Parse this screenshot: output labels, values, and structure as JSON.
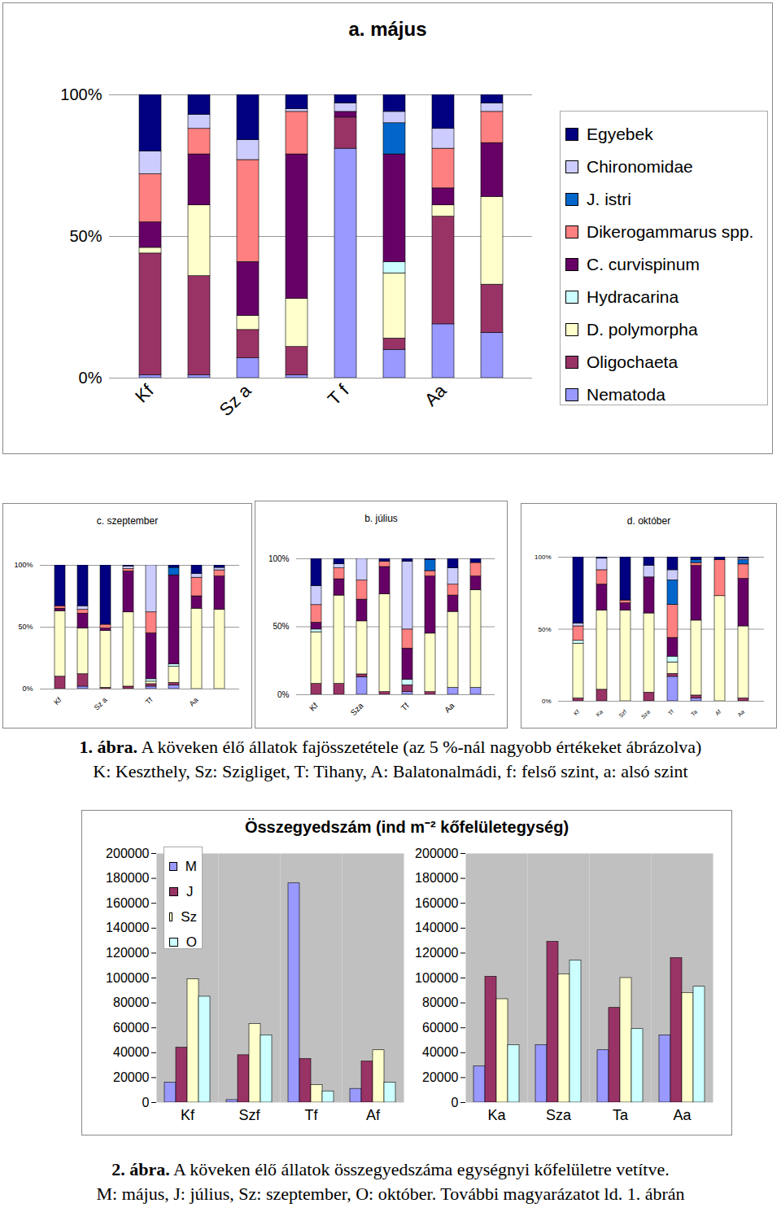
{
  "chart_data": [
    {
      "type": "bar",
      "stacked": true,
      "title": "a. május",
      "grid": true,
      "legend": "right",
      "categories": [
        "Kf",
        null,
        "Sz a",
        null,
        "T f",
        null,
        "Aa",
        null
      ],
      "ylim": [
        0,
        100
      ],
      "yticks": [
        {
          "value": 0,
          "label": "0%"
        },
        {
          "value": 50,
          "label": "50%"
        },
        {
          "value": 100,
          "label": "100%"
        }
      ],
      "series": [
        {
          "name": "Nematoda",
          "color": "#9999ff",
          "values": [
            1,
            1,
            7,
            1,
            81,
            10,
            19,
            16
          ]
        },
        {
          "name": "Oligochaeta",
          "color": "#993366",
          "values": [
            43,
            35,
            10,
            10,
            11,
            4,
            38,
            17
          ]
        },
        {
          "name": "D. polymorpha",
          "color": "#ffffcc",
          "values": [
            2,
            25,
            5,
            17,
            0,
            23,
            4,
            31
          ]
        },
        {
          "name": "Hydracarina",
          "color": "#ccffff",
          "values": [
            0,
            0,
            0,
            0,
            0,
            4,
            0,
            0
          ]
        },
        {
          "name": "C. curvispinum",
          "color": "#660066",
          "values": [
            9,
            18,
            19,
            51,
            2,
            38,
            6,
            19
          ]
        },
        {
          "name": "Dikerogammarus spp.",
          "color": "#ff8080",
          "values": [
            17,
            9,
            36,
            15,
            0,
            0,
            14,
            11
          ]
        },
        {
          "name": "J. istri",
          "color": "#0066cc",
          "values": [
            0,
            0,
            0,
            0,
            0,
            11,
            0,
            0
          ]
        },
        {
          "name": "Chironomidae",
          "color": "#ccccff",
          "values": [
            8,
            5,
            7,
            1,
            3,
            4,
            7,
            3
          ]
        },
        {
          "name": "Egyebek",
          "color": "#000080",
          "values": [
            20,
            7,
            16,
            5,
            3,
            6,
            12,
            3
          ]
        }
      ]
    },
    {
      "type": "bar",
      "stacked": true,
      "title": "c. szeptember",
      "grid": true,
      "categories": [
        "Kf",
        null,
        "Sz a",
        null,
        "Tf",
        null,
        "Aa",
        null
      ],
      "ylim": [
        0,
        100
      ],
      "yticks": [
        {
          "value": 0,
          "label": "0%"
        },
        {
          "value": 50,
          "label": "50%"
        },
        {
          "value": 100,
          "label": "100%"
        }
      ],
      "series": [
        {
          "name": "Nematoda",
          "color": "#9999ff",
          "values": [
            0,
            2,
            0,
            0,
            2,
            3,
            0,
            0
          ]
        },
        {
          "name": "Oligochaeta",
          "color": "#993366",
          "values": [
            10,
            10,
            1,
            2,
            2,
            2,
            0,
            0
          ]
        },
        {
          "name": "D. polymorpha",
          "color": "#ffffcc",
          "values": [
            53,
            37,
            46,
            60,
            2,
            13,
            65,
            64
          ]
        },
        {
          "name": "Hydracarina",
          "color": "#ccffff",
          "values": [
            0,
            0,
            0,
            0,
            2,
            2,
            0,
            0
          ]
        },
        {
          "name": "C. curvispinum",
          "color": "#660066",
          "values": [
            2,
            12,
            2,
            33,
            37,
            72,
            10,
            27
          ]
        },
        {
          "name": "Dikerogammarus spp.",
          "color": "#ff8080",
          "values": [
            2,
            3,
            3,
            2,
            17,
            0,
            15,
            5
          ]
        },
        {
          "name": "J. istri",
          "color": "#0066cc",
          "values": [
            0,
            0,
            0,
            0,
            0,
            6,
            0,
            0
          ]
        },
        {
          "name": "Chironomidae",
          "color": "#ccccff",
          "values": [
            0,
            3,
            0,
            2,
            38,
            0,
            3,
            2
          ]
        },
        {
          "name": "Egyebek",
          "color": "#000080",
          "values": [
            33,
            33,
            48,
            1,
            0,
            2,
            7,
            2
          ]
        }
      ]
    },
    {
      "type": "bar",
      "stacked": true,
      "title": "b. július",
      "grid": true,
      "categories": [
        "Kf",
        null,
        "Sza",
        null,
        "Tf",
        null,
        "Aa",
        null
      ],
      "ylim": [
        0,
        100
      ],
      "yticks": [
        {
          "value": 0,
          "label": "0%"
        },
        {
          "value": 50,
          "label": "50%"
        },
        {
          "value": 100,
          "label": "100%"
        }
      ],
      "series": [
        {
          "name": "Nematoda",
          "color": "#9999ff",
          "values": [
            0,
            0,
            13,
            0,
            2,
            0,
            5,
            5
          ]
        },
        {
          "name": "Oligochaeta",
          "color": "#993366",
          "values": [
            8,
            8,
            2,
            2,
            5,
            2,
            0,
            0
          ]
        },
        {
          "name": "D. polymorpha",
          "color": "#ffffcc",
          "values": [
            38,
            65,
            39,
            72,
            0,
            43,
            56,
            72
          ]
        },
        {
          "name": "Hydracarina",
          "color": "#ccffff",
          "values": [
            2,
            0,
            0,
            0,
            4,
            0,
            0,
            0
          ]
        },
        {
          "name": "C. curvispinum",
          "color": "#660066",
          "values": [
            5,
            12,
            16,
            20,
            23,
            42,
            12,
            10
          ]
        },
        {
          "name": "Dikerogammarus spp.",
          "color": "#ff8080",
          "values": [
            13,
            8,
            14,
            4,
            14,
            4,
            8,
            10
          ]
        },
        {
          "name": "J. istri",
          "color": "#0066cc",
          "values": [
            0,
            0,
            0,
            0,
            0,
            8,
            0,
            0
          ]
        },
        {
          "name": "Chironomidae",
          "color": "#ccccff",
          "values": [
            14,
            3,
            16,
            0,
            50,
            0,
            12,
            0
          ]
        },
        {
          "name": "Egyebek",
          "color": "#000080",
          "values": [
            20,
            4,
            0,
            2,
            2,
            1,
            7,
            3
          ]
        }
      ]
    },
    {
      "type": "bar",
      "stacked": true,
      "title": "d. október",
      "grid": true,
      "categories": [
        "Kf",
        "Ka",
        "Szf",
        "Sza",
        "Tf",
        "Ta",
        "Af",
        "Aa"
      ],
      "ylim": [
        0,
        100
      ],
      "yticks": [
        {
          "value": 0,
          "label": "0%"
        },
        {
          "value": 50,
          "label": "50%"
        },
        {
          "value": 100,
          "label": "100%"
        }
      ],
      "series": [
        {
          "name": "Nematoda",
          "color": "#9999ff",
          "values": [
            0,
            0,
            0,
            0,
            17,
            2,
            0,
            0
          ]
        },
        {
          "name": "Oligochaeta",
          "color": "#993366",
          "values": [
            2,
            8,
            0,
            6,
            2,
            2,
            0,
            2
          ]
        },
        {
          "name": "D. polymorpha",
          "color": "#ffffcc",
          "values": [
            38,
            55,
            63,
            55,
            8,
            52,
            73,
            50
          ]
        },
        {
          "name": "Hydracarina",
          "color": "#ccffff",
          "values": [
            2,
            0,
            0,
            0,
            4,
            0,
            0,
            0
          ]
        },
        {
          "name": "C. curvispinum",
          "color": "#660066",
          "values": [
            0,
            18,
            5,
            25,
            13,
            38,
            0,
            33
          ]
        },
        {
          "name": "Dikerogammarus spp.",
          "color": "#ff8080",
          "values": [
            10,
            10,
            2,
            0,
            23,
            2,
            25,
            10
          ]
        },
        {
          "name": "J. istri",
          "color": "#0066cc",
          "values": [
            0,
            0,
            0,
            0,
            17,
            2,
            0,
            3
          ]
        },
        {
          "name": "Chironomidae",
          "color": "#ccccff",
          "values": [
            2,
            8,
            0,
            8,
            7,
            0,
            0,
            1
          ]
        },
        {
          "name": "Egyebek",
          "color": "#000080",
          "values": [
            46,
            1,
            30,
            6,
            9,
            2,
            2,
            1
          ]
        }
      ]
    },
    {
      "type": "bar",
      "title": "Összegyedszám (ind m⁻² kőfelületegység)",
      "legend": "top-left",
      "categories": [
        "Kf",
        "Szf",
        "Tf",
        "Af",
        null,
        "Ka",
        "Sza",
        "Ta",
        "Aa"
      ],
      "ylim": [
        0,
        200000
      ],
      "yticks": [
        0,
        20000,
        40000,
        60000,
        80000,
        100000,
        120000,
        140000,
        160000,
        180000,
        200000
      ],
      "series": [
        {
          "name": "M",
          "color": "#9999ff",
          "values": [
            16000,
            2000,
            176000,
            11000,
            null,
            29000,
            46000,
            42000,
            54000
          ]
        },
        {
          "name": "J",
          "color": "#993366",
          "values": [
            44000,
            38000,
            35000,
            33000,
            null,
            101000,
            129000,
            76000,
            116000
          ]
        },
        {
          "name": "Sz",
          "color": "#ffffcc",
          "values": [
            99000,
            63000,
            14000,
            42000,
            null,
            83000,
            103000,
            100000,
            88000
          ]
        },
        {
          "name": "O",
          "color": "#ccffff",
          "values": [
            85000,
            54000,
            9000,
            16000,
            null,
            46000,
            114000,
            59000,
            93000
          ]
        }
      ]
    }
  ],
  "captions": [
    {
      "label": "1. ábra.",
      "lines": [
        "A köveken élő állatok fajösszetétele (az 5 %-nál nagyobb értékeket ábrázolva)",
        "K: Keszthely, Sz: Szigliget, T: Tihany, A: Balatonalmádi, f: felső szint, a: alsó szint"
      ]
    },
    {
      "label": "2. ábra.",
      "lines": [
        "A köveken élő állatok összegyedszáma egységnyi kőfelületre vetítve.",
        "M: május, J: július, Sz: szeptember, O: október. További magyarázatot ld. 1. ábrán"
      ]
    }
  ]
}
